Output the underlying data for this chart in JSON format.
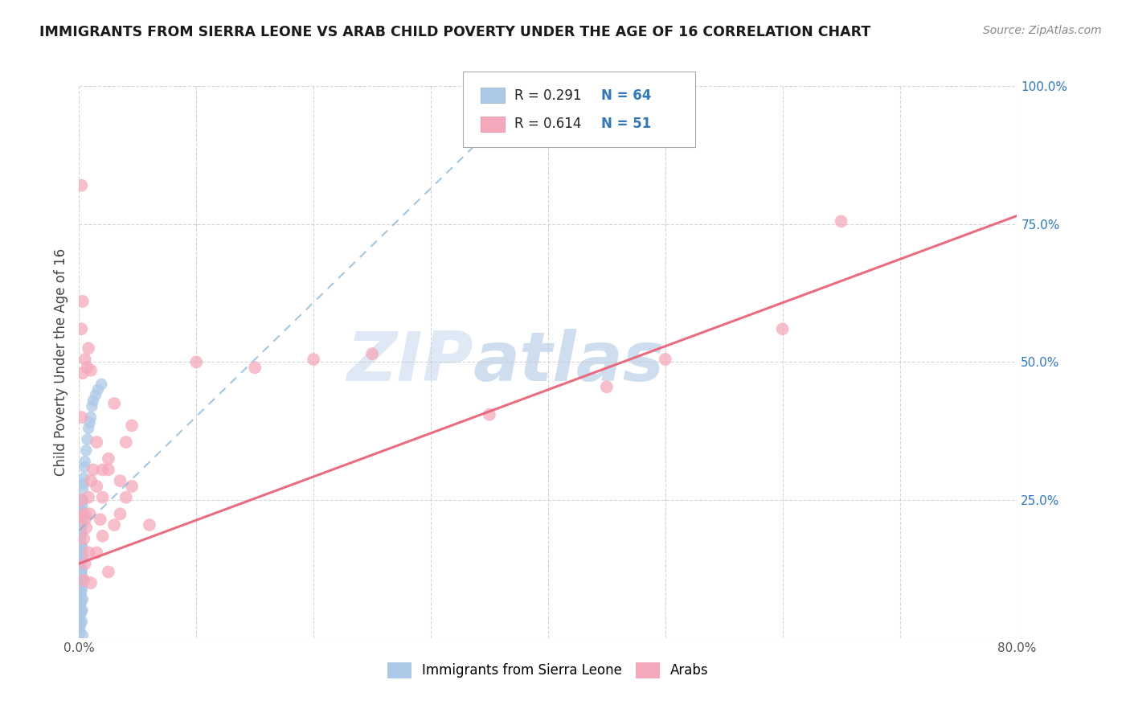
{
  "title": "IMMIGRANTS FROM SIERRA LEONE VS ARAB CHILD POVERTY UNDER THE AGE OF 16 CORRELATION CHART",
  "source": "Source: ZipAtlas.com",
  "ylabel": "Child Poverty Under the Age of 16",
  "xlim": [
    0,
    0.8
  ],
  "ylim": [
    0,
    1.0
  ],
  "color_blue": "#adc9e8",
  "color_pink": "#f5a8bb",
  "line_blue": "#7fafd4",
  "line_pink": "#e8647a",
  "watermark1": "ZIP",
  "watermark2": "atlas",
  "blue_scatter_x": [
    0.0008,
    0.001,
    0.0012,
    0.0015,
    0.0018,
    0.002,
    0.0022,
    0.0025,
    0.0028,
    0.003,
    0.0008,
    0.001,
    0.0012,
    0.0015,
    0.0018,
    0.002,
    0.0022,
    0.0025,
    0.0028,
    0.003,
    0.0008,
    0.001,
    0.0012,
    0.0015,
    0.0018,
    0.002,
    0.0022,
    0.0025,
    0.0028,
    0.003,
    0.0008,
    0.001,
    0.0012,
    0.0015,
    0.0018,
    0.002,
    0.0022,
    0.0025,
    0.0028,
    0.003,
    0.0008,
    0.001,
    0.0012,
    0.0015,
    0.0018,
    0.002,
    0.0022,
    0.0025,
    0.0028,
    0.003,
    0.0035,
    0.004,
    0.0045,
    0.005,
    0.006,
    0.007,
    0.008,
    0.009,
    0.01,
    0.011,
    0.012,
    0.014,
    0.016,
    0.019
  ],
  "blue_scatter_y": [
    0.03,
    0.05,
    0.08,
    0.1,
    0.12,
    0.05,
    0.07,
    0.09,
    0.11,
    0.15,
    0.16,
    0.17,
    0.18,
    0.19,
    0.2,
    0.21,
    0.22,
    0.23,
    0.24,
    0.25,
    0.02,
    0.04,
    0.06,
    0.08,
    0.1,
    0.12,
    0.14,
    0.03,
    0.05,
    0.07,
    0.09,
    0.11,
    0.13,
    0.15,
    0.17,
    0.19,
    0.21,
    0.23,
    0.25,
    0.27,
    0.01,
    0.025,
    0.045,
    0.065,
    0.085,
    0.105,
    0.125,
    0.145,
    0.165,
    0.005,
    0.28,
    0.29,
    0.31,
    0.32,
    0.34,
    0.36,
    0.38,
    0.39,
    0.4,
    0.42,
    0.43,
    0.44,
    0.45,
    0.46
  ],
  "pink_scatter_x": [
    0.001,
    0.0015,
    0.002,
    0.003,
    0.004,
    0.005,
    0.006,
    0.007,
    0.008,
    0.009,
    0.01,
    0.012,
    0.015,
    0.018,
    0.02,
    0.025,
    0.03,
    0.035,
    0.04,
    0.045,
    0.002,
    0.003,
    0.005,
    0.008,
    0.01,
    0.015,
    0.02,
    0.025,
    0.03,
    0.04,
    0.005,
    0.01,
    0.015,
    0.02,
    0.025,
    0.035,
    0.045,
    0.06,
    0.005,
    0.008,
    0.1,
    0.15,
    0.2,
    0.25,
    0.35,
    0.45,
    0.5,
    0.6,
    0.65,
    0.002,
    0.004
  ],
  "pink_scatter_y": [
    0.22,
    0.25,
    0.56,
    0.61,
    0.18,
    0.215,
    0.2,
    0.49,
    0.255,
    0.225,
    0.285,
    0.305,
    0.355,
    0.215,
    0.185,
    0.12,
    0.205,
    0.225,
    0.355,
    0.385,
    0.4,
    0.48,
    0.505,
    0.525,
    0.1,
    0.155,
    0.305,
    0.325,
    0.425,
    0.255,
    0.225,
    0.485,
    0.275,
    0.255,
    0.305,
    0.285,
    0.275,
    0.205,
    0.135,
    0.155,
    0.5,
    0.49,
    0.505,
    0.515,
    0.405,
    0.455,
    0.505,
    0.56,
    0.755,
    0.82,
    0.105
  ],
  "blue_trendline_x": [
    0.0,
    0.38
  ],
  "blue_trendline_y": [
    0.195,
    0.98
  ],
  "pink_trendline_x": [
    0.0,
    0.8
  ],
  "pink_trendline_y": [
    0.135,
    0.765
  ]
}
